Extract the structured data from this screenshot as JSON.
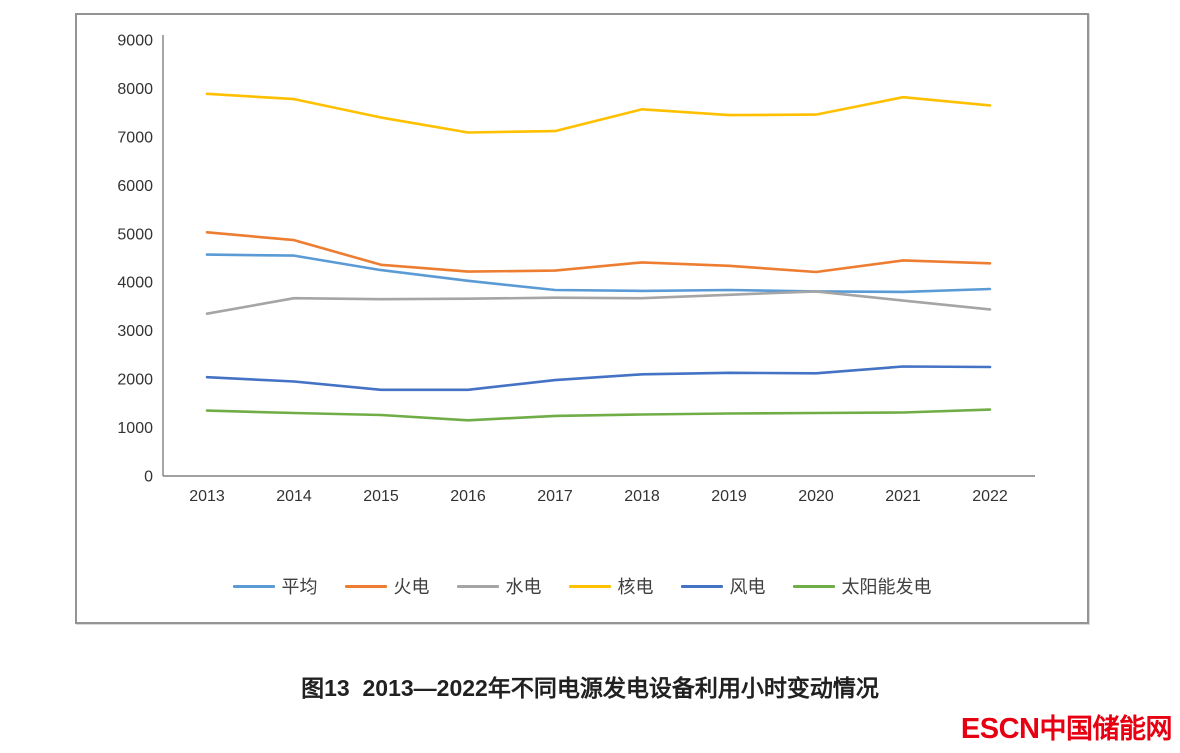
{
  "figure": {
    "caption": "图13  2013—2022年不同电源发电设备利用小时变动情况",
    "logo": {
      "latin": "ESCN",
      "cjk": "中国储能网",
      "color": "#e60012"
    }
  },
  "chart_data": {
    "type": "line",
    "title": "",
    "xlabel": "",
    "ylabel": "",
    "categories": [
      "2013",
      "2014",
      "2015",
      "2016",
      "2017",
      "2018",
      "2019",
      "2020",
      "2021",
      "2022"
    ],
    "series": [
      {
        "id": "average",
        "name": "平均",
        "color": "#5B9BD5",
        "values": [
          4570,
          4550,
          4250,
          4030,
          3840,
          3820,
          3840,
          3810,
          3800,
          3860
        ]
      },
      {
        "id": "thermal",
        "name": "火电",
        "color": "#ED7D31",
        "values": [
          5030,
          4870,
          4360,
          4220,
          4240,
          4410,
          4340,
          4210,
          4450,
          4390
        ]
      },
      {
        "id": "hydro",
        "name": "水电",
        "color": "#A5A5A5",
        "values": [
          3350,
          3670,
          3650,
          3660,
          3680,
          3670,
          3740,
          3810,
          3620,
          3440
        ]
      },
      {
        "id": "nuclear",
        "name": "核电",
        "color": "#FFC000",
        "values": [
          7890,
          7780,
          7400,
          7090,
          7120,
          7570,
          7450,
          7460,
          7820,
          7650
        ]
      },
      {
        "id": "wind",
        "name": "风电",
        "color": "#4472C4",
        "values": [
          2040,
          1950,
          1780,
          1780,
          1980,
          2100,
          2130,
          2120,
          2260,
          2250
        ]
      },
      {
        "id": "solar",
        "name": "太阳能发电",
        "color": "#70AD47",
        "values": [
          1350,
          1300,
          1260,
          1150,
          1240,
          1270,
          1290,
          1300,
          1310,
          1370
        ]
      }
    ],
    "ylim": [
      0,
      9000
    ],
    "yticks": [
      9000,
      8000,
      7000,
      6000,
      5000,
      4000,
      3000,
      2000,
      1000,
      0
    ],
    "grid": false,
    "legend_position": "bottom",
    "axis_color": "#808080",
    "tick_label_color": "#333333"
  }
}
